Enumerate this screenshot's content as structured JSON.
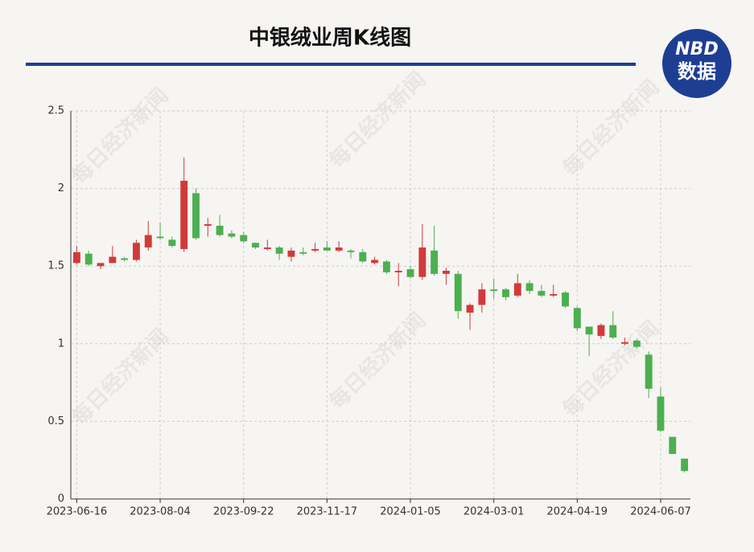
{
  "chart_data": {
    "type": "candlestick",
    "title": "中银绒业周K线图",
    "logo": {
      "top": "NBD",
      "bottom": "数据"
    },
    "watermark": "每日经济新闻",
    "categories": [
      "2023-06-16",
      null,
      null,
      null,
      null,
      null,
      null,
      "2023-08-04",
      null,
      null,
      null,
      null,
      null,
      null,
      "2023-09-22",
      null,
      null,
      null,
      null,
      null,
      null,
      "2023-11-17",
      null,
      null,
      null,
      null,
      null,
      null,
      "2024-01-05",
      null,
      null,
      null,
      null,
      null,
      null,
      "2024-03-01",
      null,
      null,
      null,
      null,
      null,
      null,
      "2024-04-19",
      null,
      null,
      null,
      null,
      null,
      null,
      "2024-06-07",
      null,
      null
    ],
    "open": [
      1.52,
      1.58,
      1.5,
      1.52,
      1.55,
      1.54,
      1.62,
      1.69,
      1.67,
      1.61,
      1.97,
      1.76,
      1.76,
      1.71,
      1.7,
      1.65,
      1.61,
      1.62,
      1.56,
      1.59,
      1.6,
      1.62,
      1.6,
      1.6,
      1.59,
      1.52,
      1.53,
      1.46,
      1.48,
      1.43,
      1.6,
      1.45,
      1.45,
      1.2,
      1.25,
      1.35,
      1.35,
      1.31,
      1.39,
      1.34,
      1.31,
      1.33,
      1.23,
      1.11,
      1.05,
      1.12,
      1.0,
      1.02,
      0.93,
      0.66,
      0.4,
      0.26
    ],
    "high": [
      1.63,
      1.6,
      1.52,
      1.63,
      1.56,
      1.67,
      1.79,
      1.78,
      1.69,
      2.2,
      2.0,
      1.81,
      1.83,
      1.73,
      1.72,
      1.65,
      1.67,
      1.63,
      1.62,
      1.62,
      1.65,
      1.66,
      1.66,
      1.61,
      1.61,
      1.56,
      1.54,
      1.52,
      1.5,
      1.77,
      1.76,
      1.49,
      1.47,
      1.26,
      1.39,
      1.42,
      1.36,
      1.45,
      1.41,
      1.38,
      1.38,
      1.34,
      1.24,
      1.11,
      1.13,
      1.21,
      1.04,
      1.03,
      0.95,
      0.72,
      0.4,
      0.26
    ],
    "low": [
      1.51,
      1.5,
      1.48,
      1.52,
      1.53,
      1.53,
      1.6,
      1.67,
      1.62,
      1.59,
      1.67,
      1.69,
      1.69,
      1.68,
      1.65,
      1.61,
      1.6,
      1.54,
      1.53,
      1.57,
      1.59,
      1.6,
      1.59,
      1.55,
      1.52,
      1.51,
      1.45,
      1.37,
      1.42,
      1.41,
      1.44,
      1.38,
      1.16,
      1.09,
      1.2,
      1.29,
      1.28,
      1.3,
      1.32,
      1.3,
      1.3,
      1.23,
      1.08,
      0.92,
      1.03,
      1.03,
      0.99,
      0.97,
      0.65,
      0.43,
      0.29,
      0.17
    ],
    "close": [
      1.59,
      1.51,
      1.52,
      1.56,
      1.54,
      1.65,
      1.7,
      1.68,
      1.63,
      2.05,
      1.68,
      1.77,
      1.7,
      1.69,
      1.66,
      1.62,
      1.62,
      1.58,
      1.6,
      1.58,
      1.61,
      1.6,
      1.62,
      1.59,
      1.53,
      1.54,
      1.46,
      1.47,
      1.43,
      1.62,
      1.45,
      1.47,
      1.21,
      1.25,
      1.35,
      1.34,
      1.3,
      1.39,
      1.34,
      1.31,
      1.32,
      1.24,
      1.1,
      1.06,
      1.12,
      1.04,
      1.01,
      0.98,
      0.71,
      0.44,
      0.29,
      0.18
    ],
    "up_color": "#d23a3a",
    "down_color": "#4caf50",
    "ylim": [
      0,
      2.5
    ],
    "yticks": [
      0,
      0.5,
      1,
      1.5,
      2,
      2.5
    ],
    "grid": true
  }
}
